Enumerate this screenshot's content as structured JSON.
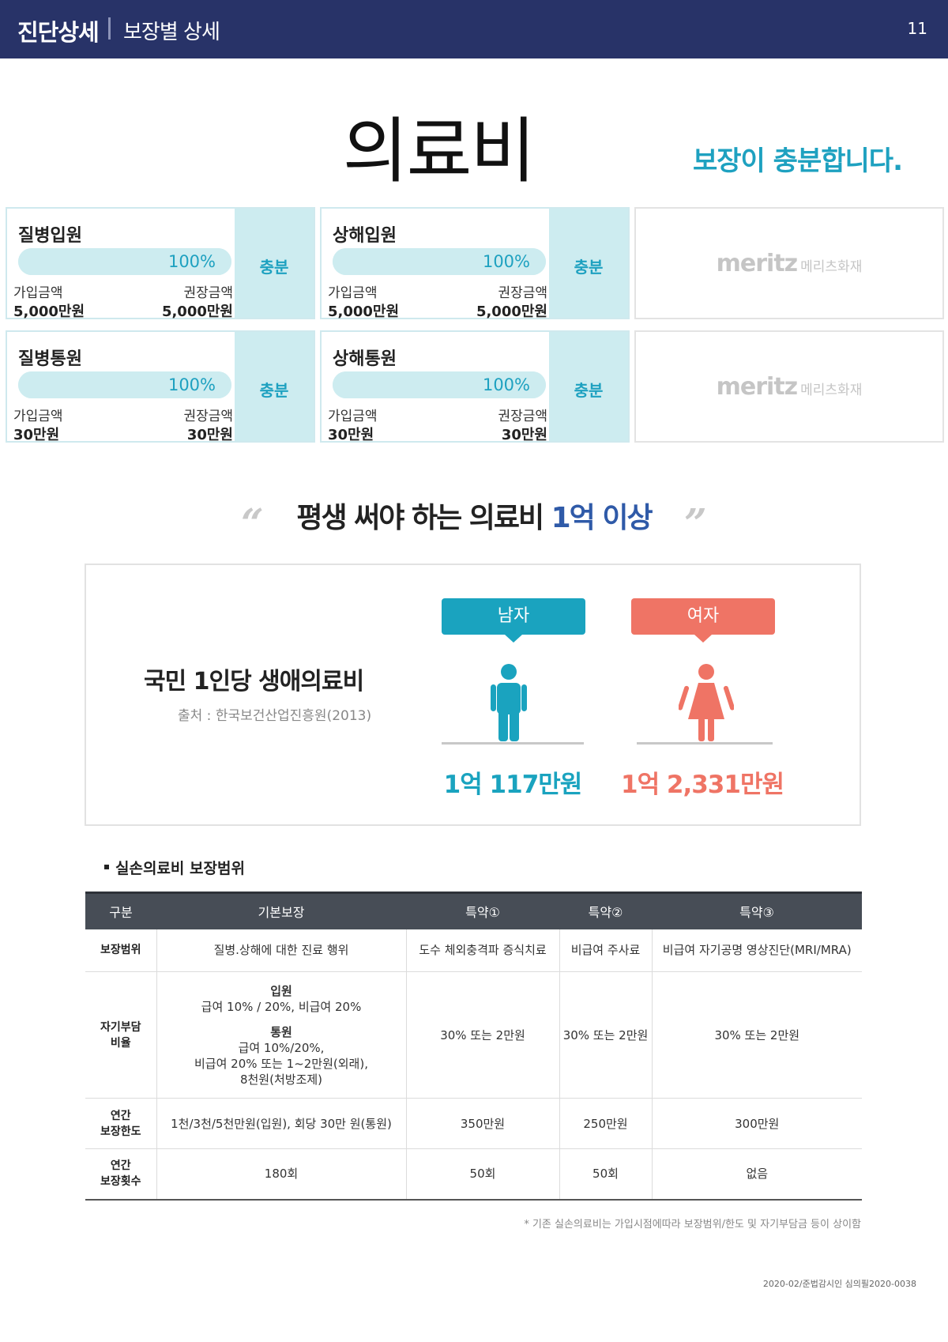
{
  "header": {
    "section": "진단상세",
    "subsection": "보장별 상세",
    "page_number": "11"
  },
  "title": "의료비",
  "verdict": "보장이 충분합니다.",
  "cards": [
    {
      "name": "질병입원",
      "percent": "100%",
      "percent_value": 100,
      "join_label": "가입금액",
      "recommend_label": "권장금액",
      "join_amount": "5,000만원",
      "recommend_amount": "5,000만원",
      "status": "충분"
    },
    {
      "name": "상해입원",
      "percent": "100%",
      "percent_value": 100,
      "join_label": "가입금액",
      "recommend_label": "권장금액",
      "join_amount": "5,000만원",
      "recommend_amount": "5,000만원",
      "status": "충분"
    },
    {
      "name": "질병통원",
      "percent": "100%",
      "percent_value": 100,
      "join_label": "가입금액",
      "recommend_label": "권장금액",
      "join_amount": "30만원",
      "recommend_amount": "30만원",
      "status": "충분"
    },
    {
      "name": "상해통원",
      "percent": "100%",
      "percent_value": 100,
      "join_label": "가입금액",
      "recommend_label": "권장금액",
      "join_amount": "30만원",
      "recommend_amount": "30만원",
      "status": "충분"
    }
  ],
  "logo": {
    "en": "meritz",
    "ko": "메리츠화재"
  },
  "quote": {
    "open": "“",
    "close": "”",
    "text": "평생 써야 하는 의료비 ",
    "highlight": "1억 이상"
  },
  "lifetime_cost": {
    "title": "국민 1인당 생애의료비",
    "source": "출처 : 한국보건산업진흥원(2013)",
    "male": {
      "label": "남자",
      "amount": "1억 117만원",
      "color": "#1aa3bf"
    },
    "female": {
      "label": "여자",
      "amount": "1억 2,331만원",
      "color": "#ef7465"
    }
  },
  "coverage_table": {
    "section_title": "실손의료비 보장범위",
    "headers": [
      "구분",
      "기본보장",
      "특약①",
      "특약②",
      "특약③"
    ],
    "rows": [
      {
        "label": "보장범위",
        "basic": "질병.상해에 대한 진료 행위",
        "rider1": "도수 체외충격파 증식치료",
        "rider2": "비급여 주사료",
        "rider3": "비급여 자기공명 영상진단(MRI/MRA)"
      },
      {
        "label": "자기부담\n비율",
        "basic_in_title": "입원",
        "basic_in": "급여 10% / 20%, 비급여 20%",
        "basic_out_title": "통원",
        "basic_out_1": "급여 10%/20%,",
        "basic_out_2": "비급여 20% 또는 1~2만원(외래),",
        "basic_out_3": "8천원(처방조제)",
        "rider1": "30% 또는 2만원",
        "rider2": "30% 또는 2만원",
        "rider3": "30% 또는 2만원"
      },
      {
        "label": "연간\n보장한도",
        "basic": "1천/3천/5천만원(입원), 회당 30만 원(통원)",
        "rider1": "350만원",
        "rider2": "250만원",
        "rider3": "300만원"
      },
      {
        "label": "연간\n보장횟수",
        "basic": "180회",
        "rider1": "50회",
        "rider2": "50회",
        "rider3": "없음"
      }
    ]
  },
  "footnote": "* 기존 실손의료비는 가입시점에따라 보장범위/한도 및 자기부담금 등이 상이함",
  "document_number": "2020-02/준법감시인 심의필2020-0038",
  "colors": {
    "header_bg": "#283368",
    "accent": "#1ea1c0",
    "card_fill": "#cdecf0",
    "highlight": "#2f5aa8"
  }
}
